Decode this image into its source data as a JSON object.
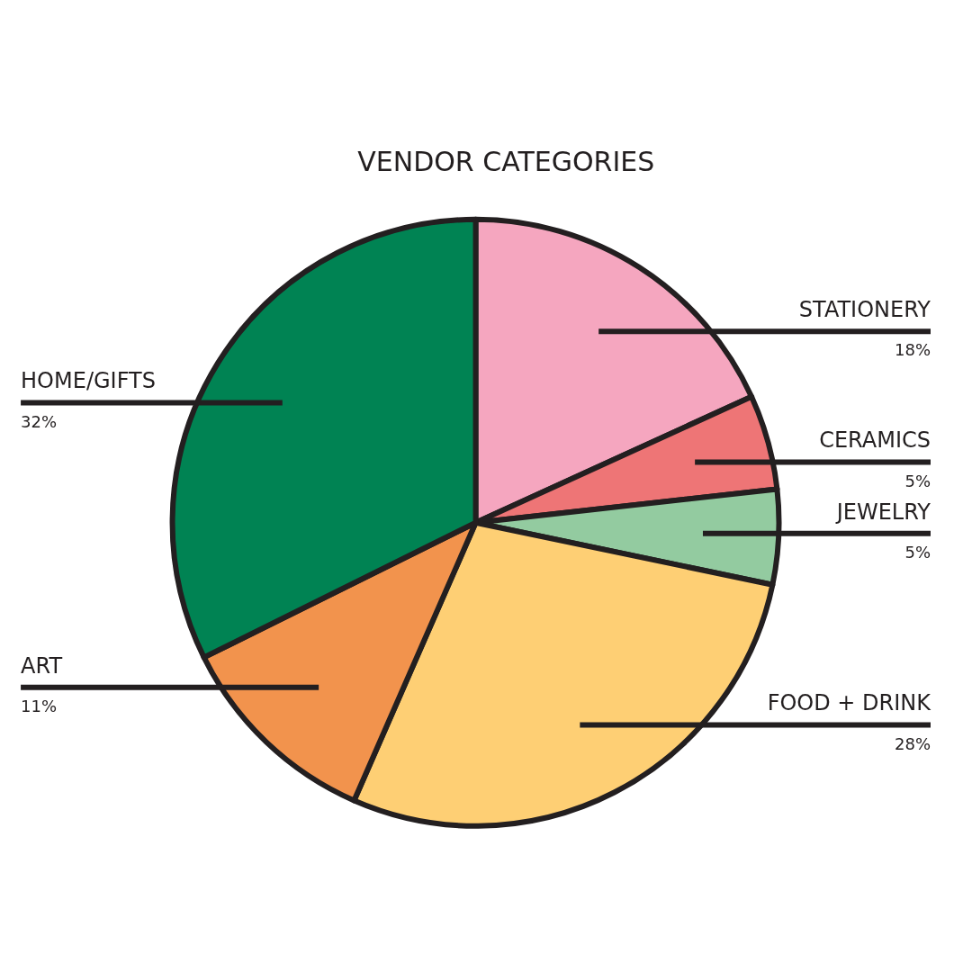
{
  "chart_data": {
    "type": "pie",
    "title": "VENDOR CATEGORIES",
    "categories": [
      "STATIONERY",
      "CERAMICS",
      "JEWELRY",
      "FOOD + DRINK",
      "ART",
      "HOME/GIFTS"
    ],
    "values": [
      18,
      5,
      5,
      28,
      11,
      32
    ],
    "value_labels": [
      "18%",
      "5%",
      "5%",
      "28%",
      "11%",
      "32%"
    ],
    "colors": [
      "#f5a6bf",
      "#ee7576",
      "#93cba0",
      "#fecf74",
      "#f2934d",
      "#008353"
    ]
  }
}
